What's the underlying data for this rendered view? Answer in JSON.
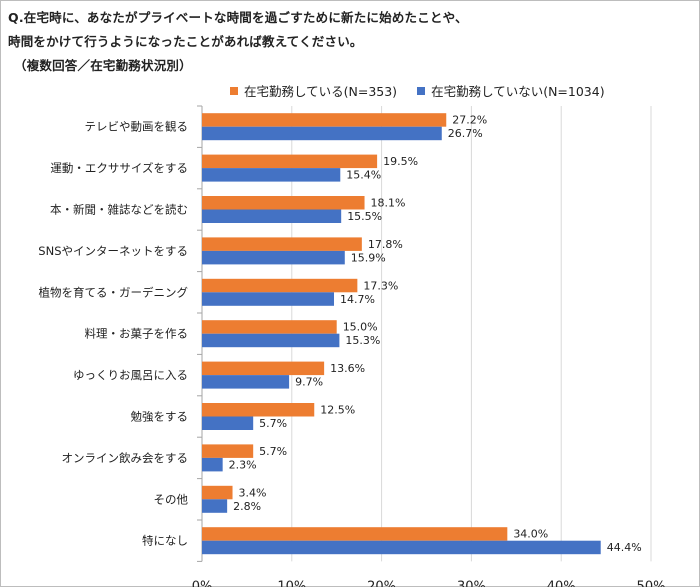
{
  "question": {
    "line1": "Q.在宅時に、あなたがプライベートな時間を過ごすために新たに始めたことや、",
    "line2": "時間をかけて行うようになったことがあれば教えてください。",
    "line3": "（複数回答／在宅勤務状況別）"
  },
  "colors": {
    "series1": "#ED7D31",
    "series2": "#4472C4",
    "grid": "#d9d9d9",
    "axis": "#a6a6a6"
  },
  "chart_data": {
    "type": "bar",
    "orientation": "horizontal",
    "categories": [
      "テレビや動画を観る",
      "運動・エクササイズをする",
      "本・新聞・雑誌などを読む",
      "SNSやインターネットをする",
      "植物を育てる・ガーデニング",
      "料理・お菓子を作る",
      "ゆっくりお風呂に入る",
      "勉強をする",
      "オンライン飲み会をする",
      "その他",
      "特になし"
    ],
    "series": [
      {
        "name": "在宅勤務している(N=353)",
        "values": [
          27.2,
          19.5,
          18.1,
          17.8,
          17.3,
          15.0,
          13.6,
          12.5,
          5.7,
          3.4,
          34.0
        ],
        "labels": [
          "27.2%",
          "19.5%",
          "18.1%",
          "17.8%",
          "17.3%",
          "15.0%",
          "13.6%",
          "12.5%",
          "5.7%",
          "3.4%",
          "34.0%"
        ]
      },
      {
        "name": "在宅勤務していない(N=1034)",
        "values": [
          26.7,
          15.4,
          15.5,
          15.9,
          14.7,
          15.3,
          9.7,
          5.7,
          2.3,
          2.8,
          44.4
        ],
        "labels": [
          "26.7%",
          "15.4%",
          "15.5%",
          "15.9%",
          "14.7%",
          "15.3%",
          "9.7%",
          "5.7%",
          "2.3%",
          "2.8%",
          "44.4%"
        ]
      }
    ],
    "xlim": [
      0,
      50
    ],
    "xticks": [
      0,
      10,
      20,
      30,
      40,
      50
    ],
    "xtick_labels": [
      "0%",
      "10%",
      "20%",
      "30%",
      "40%",
      "50%"
    ],
    "grid": true,
    "legend_position": "top"
  }
}
